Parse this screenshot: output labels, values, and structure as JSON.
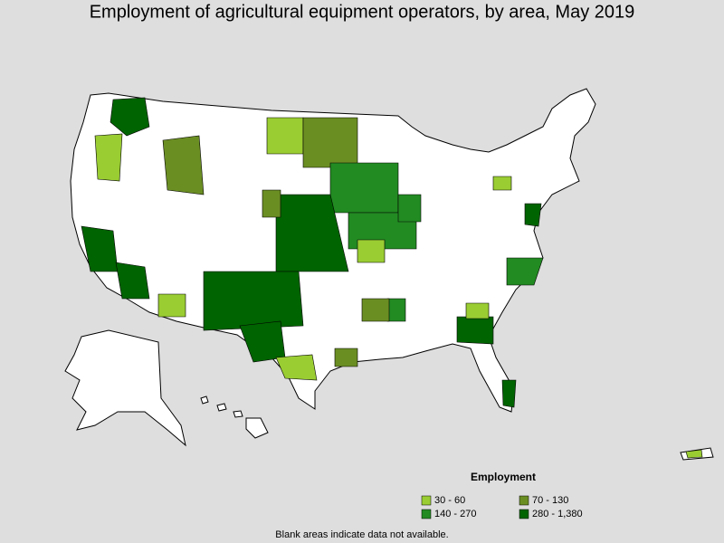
{
  "title": "Employment of agricultural equipment operators, by area, May 2019",
  "legend": {
    "title": "Employment",
    "items": [
      {
        "label": "30 - 60",
        "color": "#9acd32"
      },
      {
        "label": "70 - 130",
        "color": "#6b8e23"
      },
      {
        "label": "140 - 270",
        "color": "#228b22"
      },
      {
        "label": "280 - 1,380",
        "color": "#006400"
      }
    ]
  },
  "note": "Blank areas indicate data not available."
}
